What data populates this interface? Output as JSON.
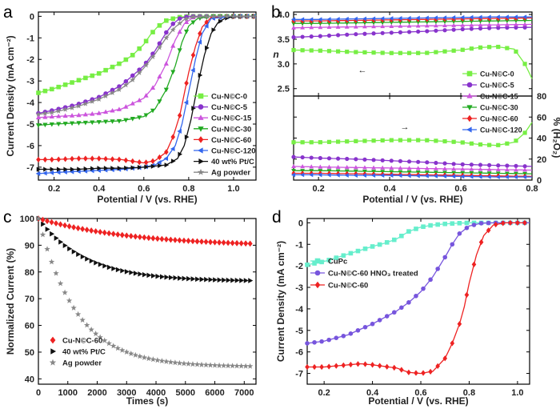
{
  "chart_data": [
    {
      "panel": "a",
      "type": "line",
      "xlabel": "Potential / V (vs. RHE)",
      "ylabel": "Current Density (mA cm⁻²)",
      "xlim": [
        0.13,
        1.1
      ],
      "ylim": [
        -7.6,
        0.2
      ],
      "xticks": [
        "0.2",
        "0.4",
        "0.6",
        "0.8",
        "1.0"
      ],
      "yticks": [
        "0",
        "-1",
        "-2",
        "-3",
        "-4",
        "-5",
        "-6",
        "-7"
      ],
      "legend_position": "bottom-right",
      "series": [
        {
          "name": "Cu-N©C-0",
          "color": "#77ee44",
          "marker": "square",
          "x": [
            0.13,
            0.2,
            0.3,
            0.4,
            0.5,
            0.55,
            0.6,
            0.63,
            0.66,
            0.7,
            0.75,
            0.8,
            0.9,
            1.0,
            1.1
          ],
          "y": [
            -3.55,
            -3.35,
            -3.0,
            -2.65,
            -2.15,
            -1.8,
            -1.3,
            -0.85,
            -0.5,
            -0.2,
            -0.05,
            0,
            0,
            0,
            0
          ]
        },
        {
          "name": "Cu-N©C-5",
          "color": "#8833cc",
          "marker": "circle",
          "x": [
            0.13,
            0.2,
            0.3,
            0.4,
            0.5,
            0.6,
            0.65,
            0.7,
            0.73,
            0.76,
            0.8,
            0.9,
            1.0,
            1.1
          ],
          "y": [
            -4.5,
            -4.35,
            -4.1,
            -3.75,
            -3.2,
            -2.3,
            -1.6,
            -0.75,
            -0.35,
            -0.1,
            0,
            0,
            0,
            0
          ]
        },
        {
          "name": "Cu-N©C-15",
          "color": "#cc55dd",
          "marker": "triangle-up",
          "x": [
            0.13,
            0.2,
            0.3,
            0.4,
            0.5,
            0.6,
            0.65,
            0.7,
            0.74,
            0.78,
            0.82,
            0.9,
            1.0,
            1.1
          ],
          "y": [
            -4.7,
            -4.65,
            -4.6,
            -4.5,
            -4.3,
            -3.8,
            -3.2,
            -2.2,
            -1.1,
            -0.35,
            -0.05,
            0,
            0,
            0
          ]
        },
        {
          "name": "Cu-N©C-30",
          "color": "#22aa22",
          "marker": "triangle-down",
          "x": [
            0.13,
            0.2,
            0.3,
            0.4,
            0.5,
            0.6,
            0.65,
            0.7,
            0.74,
            0.77,
            0.8,
            0.84,
            0.9,
            1.0,
            1.1
          ],
          "y": [
            -5.05,
            -5.0,
            -4.95,
            -4.9,
            -4.85,
            -4.65,
            -4.3,
            -3.4,
            -2.3,
            -1.2,
            -0.45,
            -0.1,
            0,
            0,
            0
          ]
        },
        {
          "name": "Cu-N©C-60",
          "color": "#ee2222",
          "marker": "diamond",
          "x": [
            0.13,
            0.2,
            0.3,
            0.4,
            0.5,
            0.6,
            0.65,
            0.7,
            0.73,
            0.76,
            0.78,
            0.8,
            0.83,
            0.86,
            0.9,
            1.0,
            1.1
          ],
          "y": [
            -6.65,
            -6.65,
            -6.6,
            -6.6,
            -6.65,
            -6.8,
            -6.7,
            -6.3,
            -5.6,
            -4.6,
            -3.6,
            -2.6,
            -1.4,
            -0.5,
            -0.05,
            0,
            0
          ]
        },
        {
          "name": "Cu-N©C-120",
          "color": "#3366ee",
          "marker": "triangle-left",
          "x": [
            0.13,
            0.2,
            0.3,
            0.4,
            0.5,
            0.6,
            0.65,
            0.7,
            0.74,
            0.77,
            0.8,
            0.83,
            0.86,
            0.9,
            1.0,
            1.1
          ],
          "y": [
            -7.3,
            -7.25,
            -7.2,
            -7.15,
            -7.1,
            -7.0,
            -6.9,
            -6.6,
            -6.0,
            -5.0,
            -3.5,
            -2.0,
            -0.8,
            -0.1,
            0,
            0
          ]
        },
        {
          "name": "40 wt% Pt/C",
          "color": "#111111",
          "marker": "triangle-right",
          "x": [
            0.13,
            0.2,
            0.3,
            0.4,
            0.5,
            0.6,
            0.7,
            0.75,
            0.78,
            0.81,
            0.84,
            0.87,
            0.9,
            0.93,
            0.96,
            1.0,
            1.1
          ],
          "y": [
            -7.1,
            -7.1,
            -7.1,
            -7.05,
            -7.05,
            -7.0,
            -6.9,
            -6.6,
            -6.0,
            -4.8,
            -3.2,
            -1.8,
            -0.8,
            -0.3,
            -0.1,
            -0.02,
            0
          ]
        },
        {
          "name": "Ag powder",
          "color": "#888888",
          "marker": "star",
          "x": [
            0.13,
            0.2,
            0.3,
            0.4,
            0.5,
            0.55,
            0.6,
            0.65,
            0.7,
            0.74,
            0.78,
            0.82,
            0.9,
            1.0,
            1.1
          ],
          "y": [
            -4.55,
            -4.45,
            -4.2,
            -3.85,
            -3.35,
            -2.95,
            -2.4,
            -1.75,
            -1.0,
            -0.5,
            -0.15,
            -0.02,
            0,
            0,
            0
          ]
        }
      ]
    },
    {
      "panel": "b",
      "type": "line",
      "xlabel": "Potential / V (vs. RHE)",
      "ylabel_top": "n",
      "ylabel_bottom": "% (H₂O₂)",
      "xlim": [
        0.13,
        0.8
      ],
      "ylim_top": [
        2.35,
        4.05
      ],
      "ylim_bottom": [
        0,
        80
      ],
      "xticks": [
        "0.2",
        "0.4",
        "0.6",
        "0.8"
      ],
      "yticks_top": [
        "2.5",
        "3.0",
        "3.5",
        "4.0"
      ],
      "yticks_bottom": [
        "0",
        "20",
        "40",
        "60",
        "80"
      ],
      "legend_position": "right",
      "series": [
        {
          "name": "Cu-N©C-0",
          "color": "#77ee44",
          "marker": "square",
          "x": [
            0.13,
            0.2,
            0.3,
            0.4,
            0.5,
            0.6,
            0.65,
            0.7,
            0.75,
            0.78,
            0.8
          ],
          "n": [
            3.28,
            3.27,
            3.24,
            3.22,
            3.22,
            3.28,
            3.33,
            3.35,
            3.3,
            3.0,
            2.7
          ],
          "h2o2": [
            36,
            36,
            37,
            38,
            38,
            36,
            34,
            33,
            36,
            45,
            55
          ]
        },
        {
          "name": "Cu-N©C-5",
          "color": "#8833cc",
          "marker": "circle",
          "x": [
            0.13,
            0.2,
            0.3,
            0.4,
            0.5,
            0.6,
            0.7,
            0.8
          ],
          "n": [
            3.54,
            3.56,
            3.6,
            3.63,
            3.66,
            3.7,
            3.73,
            3.74
          ],
          "h2o2": [
            22,
            21,
            20,
            18.5,
            17,
            15,
            14,
            13
          ]
        },
        {
          "name": "Cu-N©C-15",
          "color": "#cc55dd",
          "marker": "triangle-up",
          "x": [
            0.13,
            0.2,
            0.3,
            0.4,
            0.5,
            0.6,
            0.7,
            0.8
          ],
          "n": [
            3.73,
            3.74,
            3.75,
            3.76,
            3.77,
            3.78,
            3.79,
            3.8
          ],
          "h2o2": [
            13,
            12.5,
            12,
            11.5,
            11,
            10.5,
            10,
            9.5
          ]
        },
        {
          "name": "Cu-N©C-30",
          "color": "#22aa22",
          "marker": "triangle-down",
          "x": [
            0.13,
            0.2,
            0.3,
            0.4,
            0.5,
            0.6,
            0.7,
            0.8
          ],
          "n": [
            3.82,
            3.82,
            3.83,
            3.84,
            3.85,
            3.86,
            3.87,
            3.88
          ],
          "h2o2": [
            9,
            9,
            8.5,
            8,
            7.5,
            7,
            6.5,
            6
          ]
        },
        {
          "name": "Cu-N©C-60",
          "color": "#ee2222",
          "marker": "diamond",
          "x": [
            0.13,
            0.2,
            0.3,
            0.4,
            0.5,
            0.6,
            0.7,
            0.8
          ],
          "n": [
            3.87,
            3.87,
            3.88,
            3.89,
            3.9,
            3.91,
            3.92,
            3.93
          ],
          "h2o2": [
            6.5,
            6.5,
            6,
            5.5,
            5,
            4.5,
            4,
            3.5
          ]
        },
        {
          "name": "Cu-N©C-120",
          "color": "#3366ee",
          "marker": "triangle-left",
          "x": [
            0.13,
            0.2,
            0.3,
            0.4,
            0.5,
            0.6,
            0.7,
            0.8
          ],
          "n": [
            3.9,
            3.9,
            3.91,
            3.92,
            3.93,
            3.94,
            3.95,
            3.95
          ],
          "h2o2": [
            5,
            5,
            4.5,
            4.5,
            4,
            3.5,
            3,
            3
          ]
        }
      ]
    },
    {
      "panel": "c",
      "type": "scatter",
      "xlabel": "Times (s)",
      "ylabel": "Normalized Current (%)",
      "xlim": [
        0,
        7400
      ],
      "ylim": [
        38,
        100
      ],
      "xticks": [
        "0",
        "1000",
        "2000",
        "3000",
        "4000",
        "5000",
        "6000",
        "7000"
      ],
      "yticks": [
        "40",
        "50",
        "60",
        "70",
        "80",
        "90",
        "100"
      ],
      "legend_position": "bottom-left",
      "series": [
        {
          "name": "Cu-N©C-60",
          "color": "#ee2222",
          "marker": "diamond",
          "fit": "exp",
          "y0": 100,
          "yinf": 89.5,
          "tau": 3200,
          "tmax": 7200
        },
        {
          "name": "40 wt% Pt/C",
          "color": "#111111",
          "marker": "triangle-right",
          "fit": "exp",
          "y0": 100,
          "yinf": 76.5,
          "tau": 1600,
          "tmax": 7200
        },
        {
          "name": "Ag powder",
          "color": "#888888",
          "marker": "star",
          "fit": "exp",
          "y0": 100,
          "yinf": 44.5,
          "tau": 1300,
          "tmax": 7200
        }
      ]
    },
    {
      "panel": "d",
      "type": "line",
      "xlabel": "Potential / V (vs. RHE)",
      "ylabel": "Current Density (mA cm⁻²)",
      "xlim": [
        0.13,
        1.05
      ],
      "ylim": [
        -7.5,
        0.2
      ],
      "xticks": [
        "0.2",
        "0.4",
        "0.6",
        "0.8",
        "1.0"
      ],
      "yticks": [
        "0",
        "-1",
        "-2",
        "-3",
        "-4",
        "-5",
        "-6",
        "-7"
      ],
      "legend_position": "left",
      "series": [
        {
          "name": "CuPc",
          "color": "#66eecc",
          "marker": "square",
          "x": [
            0.13,
            0.2,
            0.3,
            0.4,
            0.45,
            0.5,
            0.55,
            0.6,
            0.65,
            0.7,
            0.75,
            0.8,
            0.9,
            1.0,
            1.05
          ],
          "y": [
            -1.95,
            -1.8,
            -1.45,
            -1.1,
            -0.95,
            -0.75,
            -0.4,
            -0.2,
            -0.1,
            -0.05,
            -0.02,
            0,
            0,
            0,
            0
          ]
        },
        {
          "name": "Cu-N©C-60 HNO₃ treated",
          "color": "#7755dd",
          "marker": "circle",
          "x": [
            0.13,
            0.2,
            0.3,
            0.4,
            0.5,
            0.55,
            0.6,
            0.65,
            0.7,
            0.73,
            0.76,
            0.8,
            0.85,
            0.9,
            1.0,
            1.05
          ],
          "y": [
            -5.6,
            -5.5,
            -5.2,
            -4.7,
            -4.1,
            -3.7,
            -3.2,
            -2.5,
            -1.6,
            -1.0,
            -0.5,
            -0.15,
            -0.02,
            0,
            0,
            0
          ]
        },
        {
          "name": "Cu-N©C-60",
          "color": "#ee2222",
          "marker": "diamond",
          "x": [
            0.13,
            0.2,
            0.3,
            0.35,
            0.4,
            0.5,
            0.55,
            0.6,
            0.65,
            0.7,
            0.73,
            0.76,
            0.78,
            0.8,
            0.83,
            0.86,
            0.9,
            0.95,
            1.0,
            1.03
          ],
          "y": [
            -6.7,
            -6.7,
            -6.6,
            -6.55,
            -6.6,
            -6.75,
            -6.95,
            -7.0,
            -6.9,
            -6.3,
            -5.6,
            -4.7,
            -3.9,
            -2.8,
            -1.5,
            -0.6,
            -0.1,
            0,
            0,
            0
          ]
        }
      ]
    }
  ],
  "annotations": {
    "n_value_arrow": "←",
    "h2o2_arrow": "→"
  }
}
